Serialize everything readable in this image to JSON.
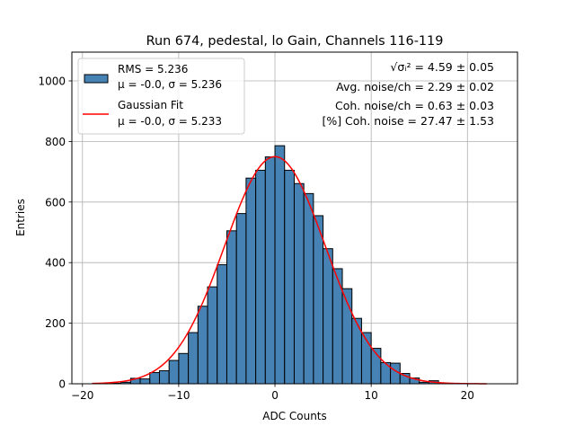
{
  "chart_data": {
    "type": "bar",
    "title": "Run 674, pedestal, lo Gain, Channels 116-119",
    "xlabel": "ADC Counts",
    "ylabel": "Entries",
    "xlim": [
      -21.1,
      25.2
    ],
    "ylim": [
      0,
      1095
    ],
    "grid": true,
    "xticks": [
      -20,
      -10,
      0,
      10,
      20
    ],
    "yticks": [
      0,
      200,
      400,
      600,
      800,
      1000
    ],
    "bin_width": 1,
    "bin_left_edges": [
      -17,
      -16,
      -15,
      -14,
      -13,
      -12,
      -11,
      -10,
      -9,
      -8,
      -7,
      -6,
      -5,
      -4,
      -3,
      -2,
      -1,
      0,
      1,
      2,
      3,
      4,
      5,
      6,
      7,
      8,
      9,
      10,
      11,
      12,
      13,
      14,
      15,
      16,
      17
    ],
    "values": [
      2,
      5,
      18,
      16,
      37,
      43,
      77,
      100,
      169,
      256,
      320,
      393,
      505,
      562,
      679,
      705,
      749,
      786,
      705,
      661,
      628,
      555,
      446,
      380,
      314,
      216,
      169,
      117,
      70,
      68,
      34,
      19,
      5,
      10,
      2
    ],
    "bar_color": "#4682b4",
    "fit": {
      "type": "gaussian",
      "amplitude": 750,
      "mu": 0.0,
      "sigma": 5.233,
      "x_range": [
        -19,
        22
      ],
      "color": "#ff0000"
    },
    "legend": {
      "placement": "top-left",
      "entries": [
        {
          "line1": "RMS = 5.236",
          "line2": "μ = -0.0, σ = 5.236"
        },
        {
          "line1": "Gaussian Fit",
          "line2": "μ = -0.0, σ = 5.233"
        }
      ]
    },
    "annotations": [
      "√σᵢ² = 4.59 ± 0.05",
      "Avg. noise/ch = 2.29 ± 0.02",
      "Coh. noise/ch = 0.63 ± 0.03",
      "[%] Coh. noise = 27.47 ± 1.53"
    ]
  }
}
